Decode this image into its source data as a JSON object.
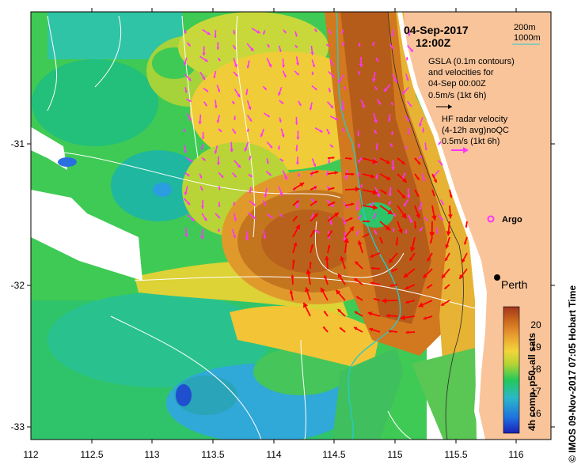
{
  "map": {
    "date": "04-Sep-2017",
    "time": "12:00Z",
    "depth_legend": [
      "200m",
      "1000m"
    ],
    "gsla_note": [
      "GSLA (0.1m contours)",
      "and velocities for",
      "04-Sep 00:00Z"
    ],
    "gsla_scale": "0.5m/s (1kt 6h)",
    "hf_note": [
      "HF radar velocity",
      "(4-12h avg)noQC"
    ],
    "hf_scale": "0.5m/s (1kt 6h)",
    "argo_label": "Argo",
    "city_label": "Perth",
    "colorbar_label": "4h comp, p50, all sats",
    "colorbar_ticks": [
      "16",
      "17",
      "18",
      "19",
      "20"
    ],
    "credit": "© IMOS 09-Nov-2017 07:05 Hobart Time",
    "x_ticks": [
      "112",
      "112.5",
      "113",
      "113.5",
      "114",
      "114.5",
      "115",
      "115.5",
      "116"
    ],
    "y_ticks": [
      "-31",
      "-32",
      "-33"
    ],
    "colors": {
      "land": "#f9c49a",
      "hf_vector": "#ff33ff",
      "gsla_vector": "#ff0000",
      "contour_200m": "#000000",
      "contour_1000m": "#22cccc",
      "sst_warm": "#c0641a",
      "sst_cool": "#2e8fde"
    }
  }
}
